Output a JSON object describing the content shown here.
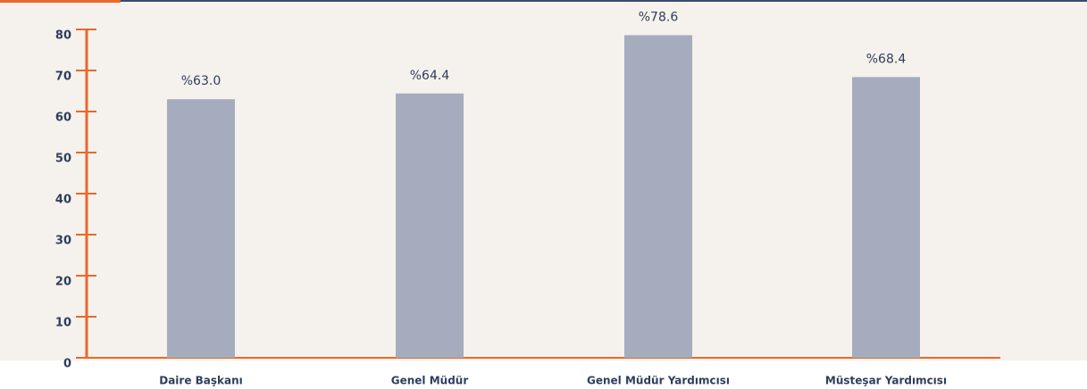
{
  "chart_data": {
    "type": "bar",
    "categories": [
      "Daire Başkanı",
      "Genel Müdür",
      "Genel Müdür Yardımcısı",
      "Müsteşar Yardımcısı"
    ],
    "values": [
      63.0,
      64.4,
      78.6,
      68.4
    ],
    "value_labels": [
      "%63.0",
      "%64.4",
      "%78.6",
      "%68.4"
    ],
    "color": "#a4acbd",
    "axis_color": "#e8692a",
    "ylim": [
      0,
      80
    ],
    "yticks": [
      0,
      10,
      20,
      30,
      40,
      50,
      60,
      70,
      80
    ]
  }
}
